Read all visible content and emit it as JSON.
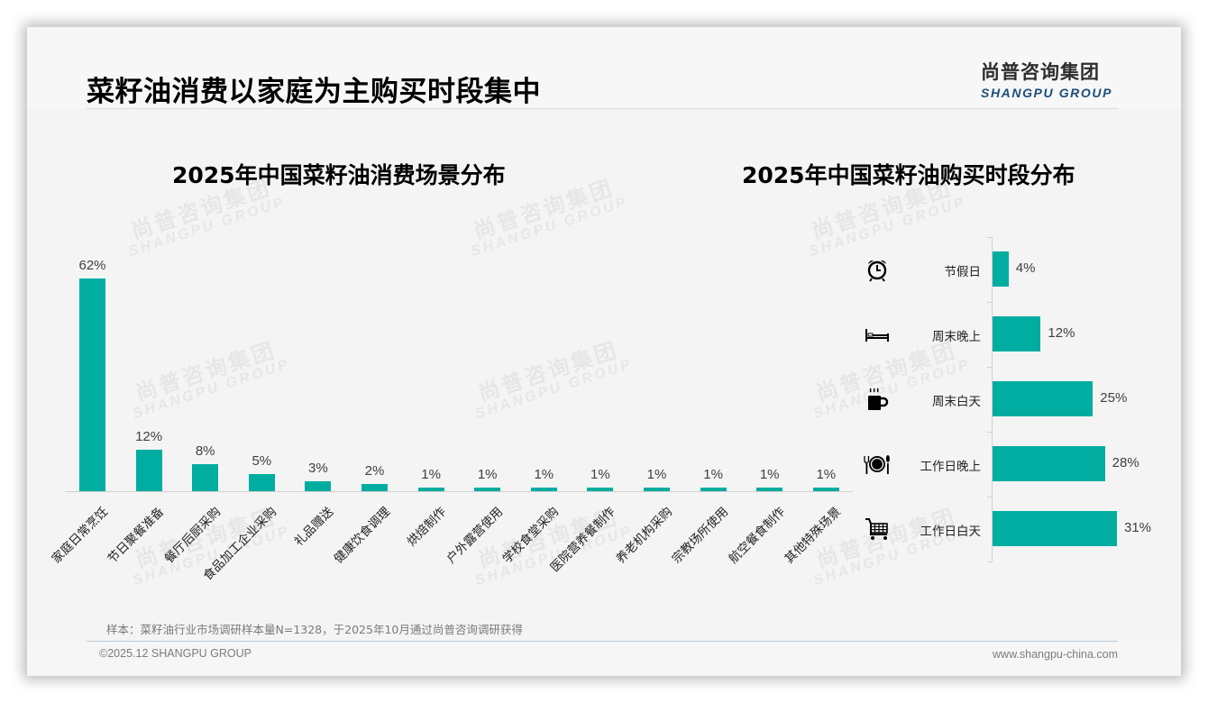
{
  "header": {
    "title": "菜籽油消费以家庭为主购买时段集中",
    "logo_cn": "尚普咨询集团",
    "logo_en": "SHANGPU GROUP"
  },
  "watermark": {
    "cn": "尚普咨询集团",
    "en": "SHANGPU GROUP"
  },
  "colors": {
    "bar": "#00ada0",
    "logo_en": "#1c4e7a",
    "footer_rule": "#b8c8d8"
  },
  "chart_data": [
    {
      "type": "bar",
      "title": "2025年中国菜籽油消费场景分布",
      "xlabel": "",
      "ylabel": "",
      "ylim": [
        0,
        62
      ],
      "grid": false,
      "legend": "none",
      "categories": [
        "家庭日常烹饪",
        "节日聚餐准备",
        "餐厅后厨采购",
        "食品加工企业采购",
        "礼品赠送",
        "健康饮食调理",
        "烘焙制作",
        "户外露营使用",
        "学校食堂采购",
        "医院营养餐制作",
        "养老机构采购",
        "宗教场所使用",
        "航空餐食制作",
        "其他特殊场景"
      ],
      "values": [
        62,
        12,
        8,
        5,
        3,
        2,
        1,
        1,
        1,
        1,
        1,
        1,
        1,
        1
      ],
      "labels": [
        "62%",
        "12%",
        "8%",
        "5%",
        "3%",
        "2%",
        "1%",
        "1%",
        "1%",
        "1%",
        "1%",
        "1%",
        "1%",
        "1%"
      ]
    },
    {
      "type": "bar",
      "orientation": "horizontal",
      "title": "2025年中国菜籽油购买时段分布",
      "xlabel": "",
      "ylabel": "",
      "grid": false,
      "legend": "none",
      "categories": [
        "节假日",
        "周末晚上",
        "周末白天",
        "工作日晚上",
        "工作日白天"
      ],
      "icons": [
        "alarm-clock-icon",
        "bed-icon",
        "coffee-mug-icon",
        "plate-cutlery-icon",
        "shopping-cart-icon"
      ],
      "values": [
        4,
        12,
        25,
        28,
        31
      ],
      "labels": [
        "4%",
        "12%",
        "25%",
        "28%",
        "31%"
      ]
    }
  ],
  "footer": {
    "note": "样本：菜籽油行业市场调研样本量N=1328，于2025年10月通过尚普咨询调研获得",
    "copyright": "©2025.12 SHANGPU GROUP",
    "website": "www.shangpu-china.com"
  }
}
